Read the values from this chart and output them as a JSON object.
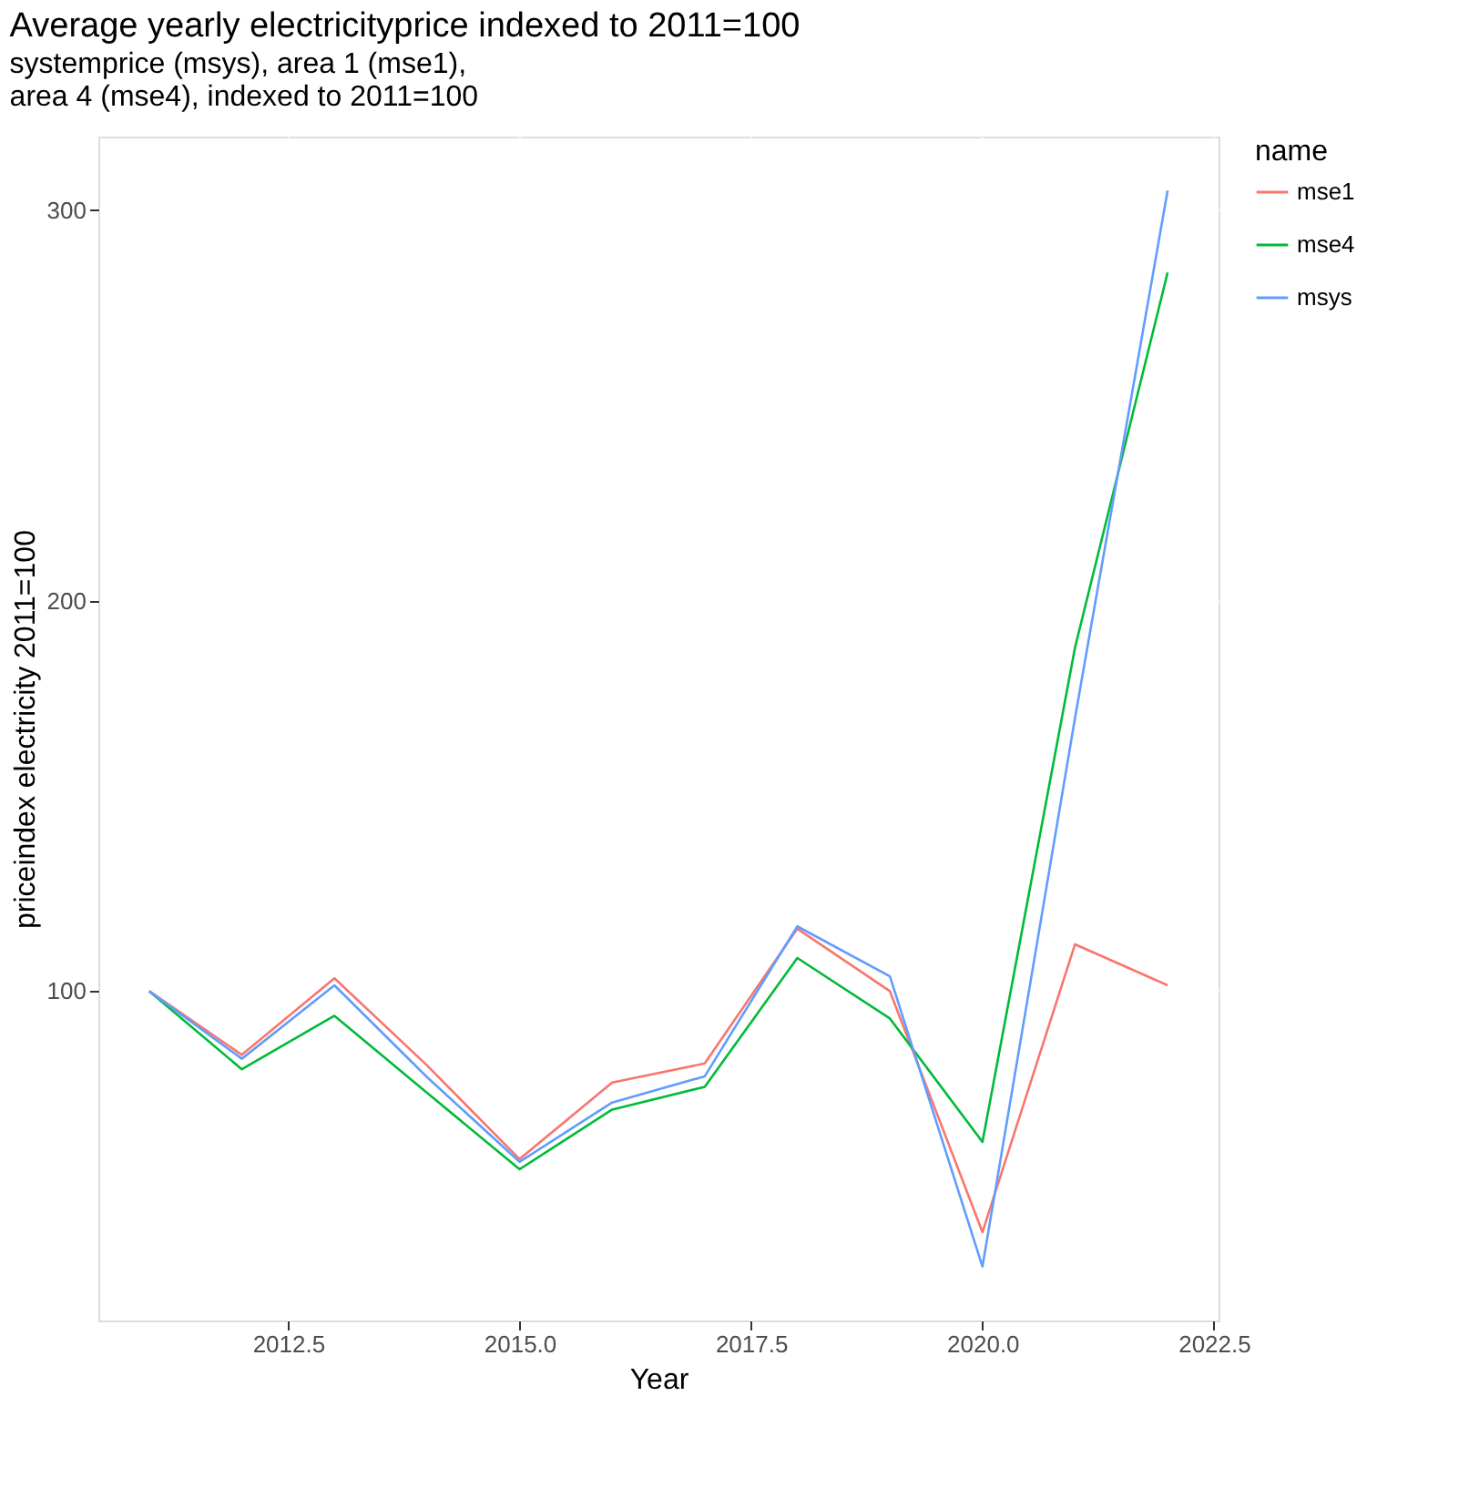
{
  "chart_data": {
    "type": "line",
    "title": "Average yearly electricityprice indexed to 2011=100",
    "subtitle": "systemprice (msys), area 1 (mse1),\n  area 4 (mse4), indexed to 2011=100",
    "xlabel": "Year",
    "ylabel": "priceindex  electricity 2011=100",
    "legend_title": "name",
    "x": [
      2011,
      2012,
      2013,
      2014,
      2015,
      2016,
      2017,
      2018,
      2019,
      2020,
      2021,
      2022
    ],
    "series": [
      {
        "name": "mse1",
        "color": "#f8766d",
        "values": [
          100,
          83.7,
          103.3,
          81,
          57,
          76.6,
          81.5,
          116,
          100,
          38.3,
          112,
          101.5
        ]
      },
      {
        "name": "mse4",
        "color": "#00ba38",
        "values": [
          100,
          80,
          93.7,
          74,
          54.4,
          69.7,
          75.5,
          108.5,
          93,
          61.4,
          188,
          284
        ]
      },
      {
        "name": "msys",
        "color": "#619cff",
        "values": [
          100,
          82.7,
          101.5,
          78,
          56.3,
          71.5,
          78.2,
          116.6,
          103.8,
          29.5,
          170,
          305
        ]
      }
    ],
    "xlim": [
      2010.45,
      2022.55
    ],
    "ylim": [
      15.7,
      318.8
    ],
    "xticks": [
      {
        "value": 2012.5,
        "label": "2012.5"
      },
      {
        "value": 2015,
        "label": "2015.0"
      },
      {
        "value": 2017.5,
        "label": "2017.5"
      },
      {
        "value": 2020,
        "label": "2020.0"
      },
      {
        "value": 2022.5,
        "label": "2022.5"
      }
    ],
    "yticks": [
      100,
      200,
      300
    ],
    "grid": true,
    "legend": "right",
    "line_style": "solid",
    "marker": "none"
  }
}
